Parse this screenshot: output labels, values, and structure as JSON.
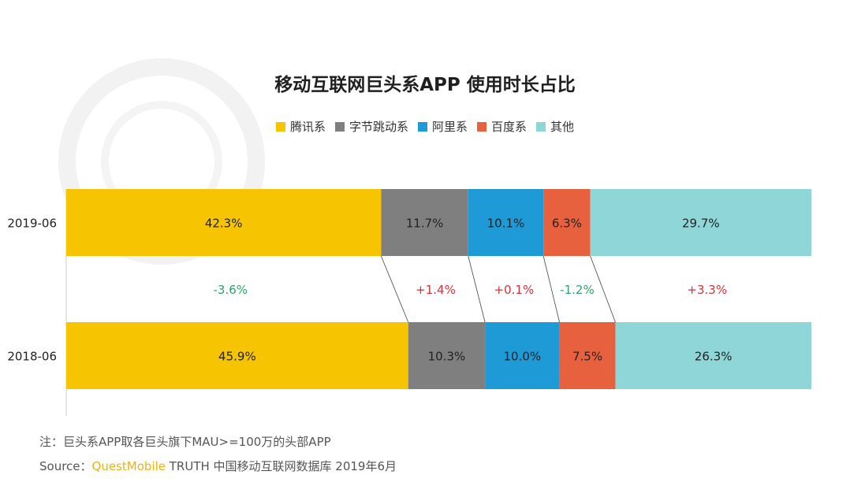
{
  "title": "移动互联网巨头系APP 使用时长占比",
  "colors": {
    "tencent": "#f6c400",
    "bytedance": "#7f7f7f",
    "alibaba": "#1e9ad6",
    "baidu": "#e8613e",
    "other": "#8fd6d8",
    "positive": "#d8333a",
    "negative": "#2fa36b",
    "brand": "#e9b31a"
  },
  "chart_data": {
    "type": "bar",
    "orientation": "horizontal",
    "stacked": "percent",
    "categories": [
      "2019-06",
      "2018-06"
    ],
    "series": [
      {
        "name": "腾讯系",
        "color": "#f6c400",
        "values": [
          42.3,
          45.9
        ],
        "labels": [
          "42.3%",
          "45.9%"
        ]
      },
      {
        "name": "字节跳动系",
        "color": "#7f7f7f",
        "values": [
          11.7,
          10.3
        ],
        "labels": [
          "11.7%",
          "10.3%"
        ]
      },
      {
        "name": "阿里系",
        "color": "#1e9ad6",
        "values": [
          10.1,
          10.0
        ],
        "labels": [
          "10.1%",
          "10.0%"
        ]
      },
      {
        "name": "百度系",
        "color": "#e8613e",
        "values": [
          6.3,
          7.5
        ],
        "labels": [
          "6.3%",
          "7.5%"
        ]
      },
      {
        "name": "其他",
        "color": "#8fd6d8",
        "values": [
          29.7,
          26.3
        ],
        "labels": [
          "29.7%",
          "26.3%"
        ]
      }
    ],
    "changes": [
      "-3.6%",
      "+1.4%",
      "+0.1%",
      "-1.2%",
      "+3.3%"
    ],
    "legend_position": "top-center",
    "grid": false
  },
  "footer": {
    "note": "注：巨头系APP取各巨头旗下MAU>=100万的头部APP",
    "source_prefix": "Source：",
    "source_brand": "QuestMobile",
    "source_rest": " TRUTH 中国移动互联网数据库 2019年6月"
  }
}
